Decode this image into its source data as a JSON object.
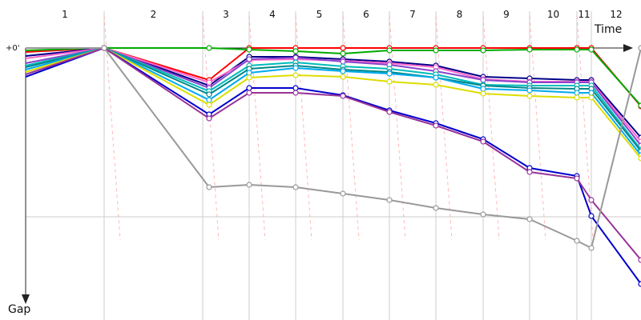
{
  "chart_data": {
    "type": "line",
    "x_axis_label": "Time",
    "y_axis_label": "Gap",
    "zero_label": "+0'",
    "laps": [
      "1",
      "2",
      "3",
      "4",
      "5",
      "6",
      "7",
      "8",
      "9",
      "10",
      "11",
      "12"
    ],
    "grid": true,
    "series": [
      {
        "color": "#ff0000",
        "values": [
          5,
          0,
          40,
          0,
          0,
          0,
          0,
          0,
          0,
          0,
          0,
          0,
          73
        ]
      },
      {
        "color": "#00aa00",
        "values": [
          3,
          0,
          0,
          2,
          4,
          7,
          3,
          3,
          3,
          2,
          2,
          2,
          72
        ]
      },
      {
        "color": "#000088",
        "values": [
          10,
          0,
          47,
          11,
          11,
          14,
          17,
          22,
          36,
          38,
          40,
          40,
          112
        ]
      },
      {
        "color": "#ff66cc",
        "values": [
          13,
          0,
          43,
          15,
          14,
          16,
          19,
          24,
          39,
          42,
          42,
          42,
          117
        ]
      },
      {
        "color": "#8844cc",
        "values": [
          19,
          0,
          50,
          14,
          12,
          17,
          21,
          29,
          40,
          43,
          43,
          43,
          122
        ]
      },
      {
        "color": "#00bbbb",
        "values": [
          22,
          0,
          54,
          22,
          18,
          23,
          26,
          33,
          46,
          47,
          47,
          47,
          127
        ]
      },
      {
        "color": "#008888",
        "values": [
          24,
          0,
          58,
          26,
          22,
          27,
          30,
          37,
          47,
          50,
          51,
          51,
          129
        ]
      },
      {
        "color": "#00aaee",
        "values": [
          27,
          0,
          65,
          31,
          25,
          29,
          32,
          37,
          51,
          53,
          56,
          56,
          134
        ]
      },
      {
        "color": "#dddd00",
        "values": [
          30,
          0,
          71,
          37,
          34,
          36,
          42,
          46,
          57,
          60,
          62,
          62,
          138
        ]
      },
      {
        "color": "#0000cc",
        "values": [
          36,
          0,
          83,
          50,
          50,
          59,
          78,
          94,
          114,
          150,
          160,
          210,
          295
        ]
      },
      {
        "color": "#993399",
        "values": [
          33,
          0,
          88,
          56,
          56,
          60,
          80,
          97,
          117,
          155,
          163,
          190,
          265
        ]
      },
      {
        "color": "#999999",
        "values": [
          0,
          0,
          174,
          171,
          174,
          182,
          190,
          200,
          208,
          214,
          241,
          250,
          0
        ]
      }
    ]
  }
}
